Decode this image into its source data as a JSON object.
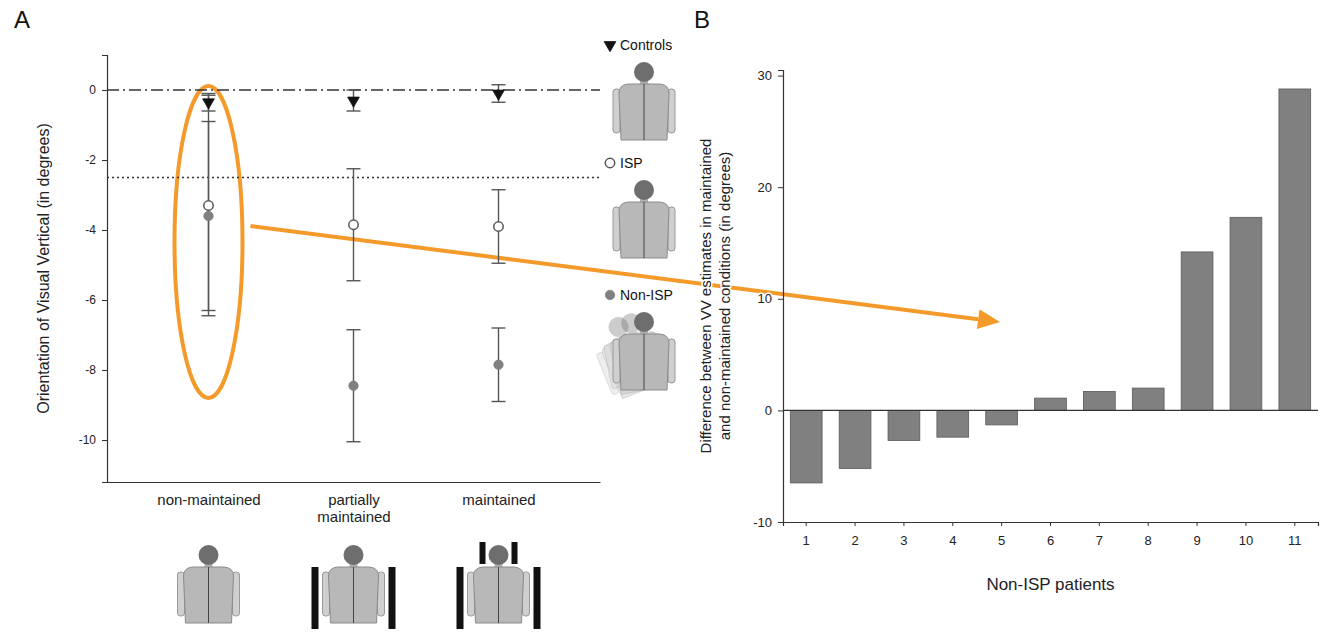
{
  "chart_data": [
    {
      "panel": "A",
      "type": "scatter",
      "categories": [
        "non-maintained",
        "partially maintained",
        "maintained"
      ],
      "y_label": "Orientation of Visual Vertical (in degrees)",
      "ylim": [
        -11.2,
        1
      ],
      "yticks": [
        -10,
        -8,
        -6,
        -4,
        -2,
        0
      ],
      "legend": "right",
      "reference_lines": [
        {
          "value": 0,
          "line_style": "dashdot"
        },
        {
          "value": -2.5,
          "line_style": "dotted"
        }
      ],
      "series": [
        {
          "name": "Controls",
          "color": "#111111",
          "marker": "triangle-down",
          "values": [
            -0.35,
            -0.3,
            -0.1
          ],
          "errors": [
            0.25,
            0.3,
            0.25
          ]
        },
        {
          "name": "ISP",
          "color": "#555555",
          "marker": "circle-open",
          "values": [
            -3.3,
            -3.85,
            -3.9
          ],
          "errors": [
            3.15,
            1.6,
            1.05
          ]
        },
        {
          "name": "Non-ISP",
          "color": "#808080",
          "marker": "circle",
          "values": [
            -3.6,
            -8.45,
            -7.85
          ],
          "errors": [
            2.7,
            1.6,
            1.05
          ]
        }
      ]
    },
    {
      "panel": "B",
      "type": "bar",
      "categories": [
        "1",
        "2",
        "3",
        "4",
        "5",
        "6",
        "7",
        "8",
        "9",
        "10",
        "11"
      ],
      "x_label": "Non-ISP patients",
      "y_label": "Difference between VV estimates in maintained and non-maintained conditions (in degrees)",
      "ylim": [
        -10,
        30.5
      ],
      "yticks": [
        -10,
        0,
        10,
        20,
        30
      ],
      "color": "#808080",
      "values": [
        -6.5,
        -5.2,
        -2.7,
        -2.4,
        -1.3,
        1.1,
        1.7,
        2.0,
        14.2,
        17.3,
        28.8
      ]
    }
  ]
}
